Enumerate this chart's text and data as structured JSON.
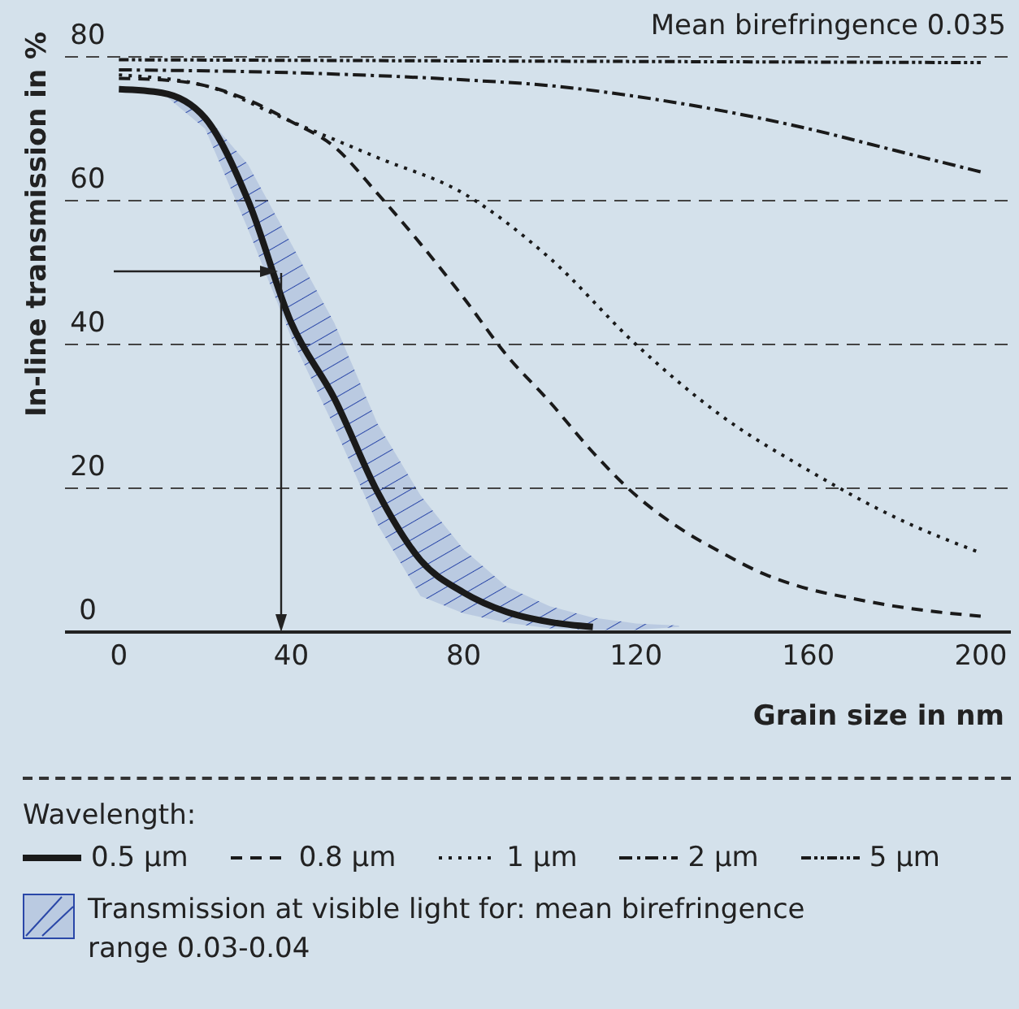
{
  "chart_data": {
    "type": "line",
    "xlabel": "Grain size in nm",
    "ylabel": "In-line transmission in %",
    "legend_title": "Wavelength:",
    "legend": "bottom",
    "grid": "y",
    "xlim": [
      -12.5,
      207
    ],
    "xticks": [
      0,
      40,
      80,
      120,
      160,
      200
    ],
    "ylim": [
      0,
      80
    ],
    "yticks": [
      0,
      20,
      40,
      60,
      80
    ],
    "annotations": [
      "Mean birefringence 0.035",
      "Transmission at visible light for: mean birefringence range 0.03-0.04"
    ],
    "series": [
      {
        "name": "0.5 µm",
        "color": "#1a1a1a",
        "line_style": "solid",
        "x": [
          0,
          10,
          20,
          30,
          40,
          50,
          60,
          70,
          80,
          90,
          100,
          110,
          120,
          130
        ],
        "values": [
          75.5,
          75,
          71.5,
          60,
          43,
          32.5,
          19.5,
          10,
          5.5,
          2.8,
          1.4,
          0.7,
          null,
          null
        ],
        "lower": [
          75.5,
          75,
          70,
          56,
          41,
          28.5,
          15,
          5,
          2.6,
          1.3,
          0.5,
          0.3,
          0.3,
          0.7
        ],
        "upper": [
          75.5,
          75,
          72,
          65,
          54,
          43,
          29,
          19,
          11.5,
          6.3,
          3.6,
          2,
          1.2,
          0.9
        ]
      },
      {
        "name": "0.8 µm",
        "color": "#1a1a1a",
        "line_style": "dashed",
        "x": [
          0,
          10,
          20,
          30,
          40,
          50,
          60,
          70,
          80,
          90,
          100,
          110,
          120,
          130,
          140,
          150,
          160,
          170,
          180,
          190,
          200
        ],
        "values": [
          77,
          76.8,
          76,
          74,
          71,
          67.5,
          61,
          54,
          46.5,
          38.5,
          32,
          25,
          19,
          14.5,
          11,
          8,
          6,
          4.7,
          3.6,
          2.8,
          2.2
        ]
      },
      {
        "name": "1 µm",
        "color": "#1a1a1a",
        "line_style": "dotted",
        "x": [
          0,
          20,
          40,
          60,
          80,
          100,
          120,
          140,
          160,
          180,
          200
        ],
        "values": [
          77.5,
          76,
          71,
          66,
          61,
          52,
          40,
          30,
          22.5,
          16,
          11
        ]
      },
      {
        "name": "2 µm",
        "color": "#1a1a1a",
        "line_style": "dashdot",
        "x": [
          0,
          40,
          80,
          100,
          120,
          140,
          160,
          180,
          200
        ],
        "values": [
          78.2,
          77.8,
          76.8,
          76,
          74.5,
          72.5,
          70,
          67,
          64
        ]
      },
      {
        "name": "5 µm",
        "color": "#1a1a1a",
        "line_style": "dashdotdot",
        "x": [
          0,
          100,
          200
        ],
        "values": [
          79.6,
          79.4,
          79.2
        ]
      }
    ]
  }
}
